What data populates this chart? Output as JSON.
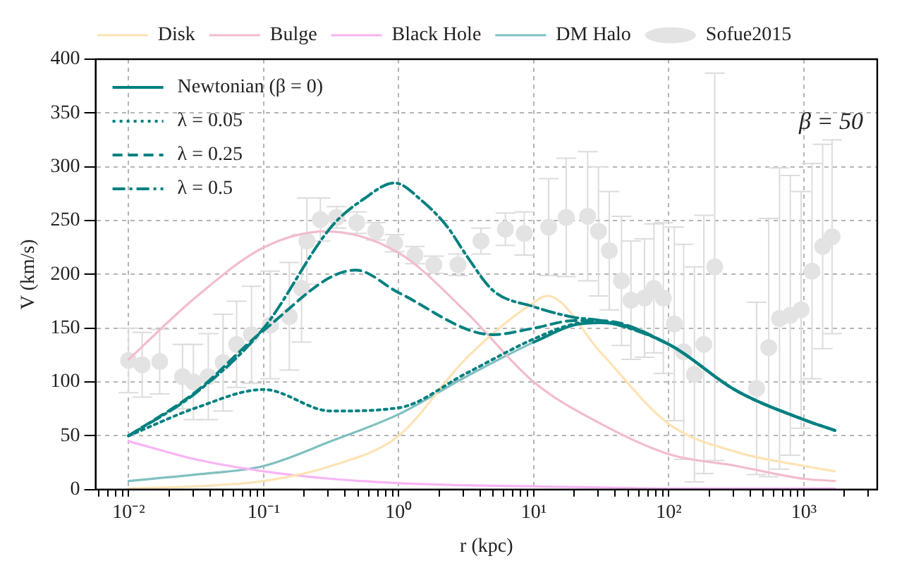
{
  "chart_data": {
    "type": "line",
    "xlabel": "r (kpc)",
    "ylabel": "V (km/s)",
    "log": "x",
    "grid": true,
    "legend": "top",
    "annotations": [
      "β = 50"
    ],
    "xlim": [
      0.0057,
      3500
    ],
    "ylim": [
      0,
      400
    ],
    "xticks": [
      {
        "value": 0.006,
        "label": null
      },
      {
        "value": 0.007,
        "label": null
      },
      {
        "value": 0.008,
        "label": null
      },
      {
        "value": 0.009,
        "label": null
      },
      {
        "value": 0.01,
        "label": "10⁻²"
      },
      {
        "value": 0.02,
        "label": null
      },
      {
        "value": 0.03,
        "label": null
      },
      {
        "value": 0.04,
        "label": null
      },
      {
        "value": 0.05,
        "label": null
      },
      {
        "value": 0.06,
        "label": null
      },
      {
        "value": 0.07,
        "label": null
      },
      {
        "value": 0.08,
        "label": null
      },
      {
        "value": 0.09,
        "label": null
      },
      {
        "value": 0.1,
        "label": "10⁻¹"
      },
      {
        "value": 0.2,
        "label": null
      },
      {
        "value": 0.3,
        "label": null
      },
      {
        "value": 0.4,
        "label": null
      },
      {
        "value": 0.5,
        "label": null
      },
      {
        "value": 0.6,
        "label": null
      },
      {
        "value": 0.7,
        "label": null
      },
      {
        "value": 0.8,
        "label": null
      },
      {
        "value": 0.9,
        "label": null
      },
      {
        "value": 1,
        "label": "10⁰"
      },
      {
        "value": 2,
        "label": null
      },
      {
        "value": 3,
        "label": null
      },
      {
        "value": 4,
        "label": null
      },
      {
        "value": 5,
        "label": null
      },
      {
        "value": 6,
        "label": null
      },
      {
        "value": 7,
        "label": null
      },
      {
        "value": 8,
        "label": null
      },
      {
        "value": 9,
        "label": null
      },
      {
        "value": 10,
        "label": "10¹"
      },
      {
        "value": 20,
        "label": null
      },
      {
        "value": 30,
        "label": null
      },
      {
        "value": 40,
        "label": null
      },
      {
        "value": 50,
        "label": null
      },
      {
        "value": 60,
        "label": null
      },
      {
        "value": 70,
        "label": null
      },
      {
        "value": 80,
        "label": null
      },
      {
        "value": 90,
        "label": null
      },
      {
        "value": 100,
        "label": "10²"
      },
      {
        "value": 200,
        "label": null
      },
      {
        "value": 300,
        "label": null
      },
      {
        "value": 400,
        "label": null
      },
      {
        "value": 500,
        "label": null
      },
      {
        "value": 600,
        "label": null
      },
      {
        "value": 700,
        "label": null
      },
      {
        "value": 800,
        "label": null
      },
      {
        "value": 900,
        "label": null
      },
      {
        "value": 1000,
        "label": "10³"
      },
      {
        "value": 2000,
        "label": null
      },
      {
        "value": 3000,
        "label": null
      }
    ],
    "yticks": [
      0,
      50,
      100,
      150,
      200,
      250,
      300,
      350,
      400
    ],
    "series": [
      {
        "name": "Disk",
        "color": "#fde3b4",
        "line_style": "solid",
        "x": [
          0.01,
          0.0316,
          0.1,
          0.316,
          1,
          3.16,
          10,
          12.6,
          31.6,
          100,
          316,
          1000,
          1700
        ],
        "values": [
          1,
          3,
          8,
          22,
          50,
          122,
          174,
          180,
          127,
          61,
          35,
          22,
          17
        ]
      },
      {
        "name": "Bulge",
        "color": "#f2bccb",
        "line_style": "solid",
        "x": [
          0.01,
          0.0316,
          0.1,
          0.29,
          1,
          3.16,
          10,
          31.6,
          100,
          316,
          1000,
          1700
        ],
        "values": [
          121,
          179,
          225,
          240,
          220,
          165,
          100,
          61,
          33,
          22,
          10,
          8
        ]
      },
      {
        "name": "Black Hole",
        "color": "#f8b4f4",
        "line_style": "solid",
        "x": [
          0.01,
          0.0316,
          0.1,
          0.316,
          1,
          3.16,
          10,
          31.6,
          100,
          316,
          1000,
          1700
        ],
        "values": [
          45,
          28,
          17,
          10,
          6,
          4,
          3,
          2,
          1,
          1,
          1,
          1
        ]
      },
      {
        "name": "DM Halo",
        "color": "#7fbfbf",
        "line_style": "solid",
        "x": [
          0.01,
          0.0316,
          0.1,
          0.316,
          1,
          3.16,
          10,
          20,
          31.6,
          100,
          316,
          1000,
          1700
        ],
        "values": [
          8,
          14,
          22,
          45,
          70,
          105,
          137,
          153,
          155,
          135,
          92,
          65,
          55
        ]
      },
      {
        "name": "Sofue2015",
        "type": "scatter",
        "marker": "circle",
        "color": "#e3e3e3",
        "x": [
          0.01,
          0.0126,
          0.017,
          0.0251,
          0.0302,
          0.0389,
          0.0501,
          0.0631,
          0.0813,
          0.112,
          0.155,
          0.191,
          0.209,
          0.263,
          0.347,
          0.49,
          0.676,
          0.933,
          1.32,
          1.82,
          2.75,
          4.07,
          6.17,
          8.51,
          12.9,
          17.4,
          25.1,
          30.2,
          36.3,
          44.7,
          52.5,
          66.1,
          77.6,
          91.2,
          110,
          129,
          155,
          182,
          219,
          447,
          550,
          661,
          794,
          955,
          1150,
          1380,
          1620
        ],
        "values": [
          120,
          116,
          119,
          105,
          100,
          105,
          118,
          135,
          144,
          153,
          161,
          187,
          231,
          251,
          253,
          248,
          240,
          229,
          218,
          209,
          209,
          231,
          242,
          238,
          244,
          253,
          254,
          240,
          222,
          194,
          176,
          178,
          187,
          178,
          154,
          128,
          107,
          135,
          207,
          94,
          132,
          159,
          162,
          167,
          203,
          226,
          235
        ],
        "errors": [
          30,
          30,
          30,
          30,
          35,
          40,
          45,
          40,
          45,
          50,
          50,
          50,
          40,
          20,
          10,
          10,
          8,
          8,
          8,
          8,
          10,
          12,
          15,
          20,
          45,
          55,
          60,
          60,
          55,
          60,
          55,
          55,
          60,
          70,
          90,
          100,
          100,
          120,
          180,
          80,
          120,
          140,
          130,
          110,
          100,
          95,
          90
        ]
      },
      {
        "name": "Newtonian (β = 0)",
        "color": "#008080",
        "line_style": "solid",
        "x": [
          10,
          20,
          31.6,
          100,
          316,
          1000,
          1700
        ],
        "values": [
          137,
          153,
          155,
          135,
          92,
          65,
          55
        ]
      },
      {
        "name": "λ = 0.05",
        "color": "#008080",
        "line_style": "dotted",
        "x": [
          0.01,
          0.0316,
          0.1,
          0.316,
          1,
          3.16,
          10,
          20,
          31.6,
          100,
          316,
          1000,
          1700
        ],
        "values": [
          50,
          76,
          93,
          73,
          76,
          108,
          140,
          154,
          156,
          135,
          92,
          65,
          55
        ]
      },
      {
        "name": "λ = 0.25",
        "color": "#008080",
        "line_style": "dashed",
        "x": [
          0.01,
          0.0316,
          0.1,
          0.48,
          1,
          5,
          10,
          20,
          31.6,
          100,
          316,
          1000,
          1700
        ],
        "values": [
          50,
          91,
          148,
          204,
          183,
          144,
          150,
          157,
          157,
          135,
          92,
          65,
          55
        ]
      },
      {
        "name": "λ = 0.5",
        "color": "#008080",
        "line_style": "dashdot",
        "x": [
          0.01,
          0.0316,
          0.1,
          0.316,
          0.55,
          0.93,
          1.5,
          2.3,
          3.16,
          5,
          10,
          20,
          31.6,
          100,
          316,
          1000,
          1700
        ],
        "values": [
          50,
          90,
          150,
          244,
          270,
          285,
          268,
          244,
          218,
          185,
          170,
          160,
          157,
          135,
          92,
          65,
          55
        ]
      }
    ]
  }
}
